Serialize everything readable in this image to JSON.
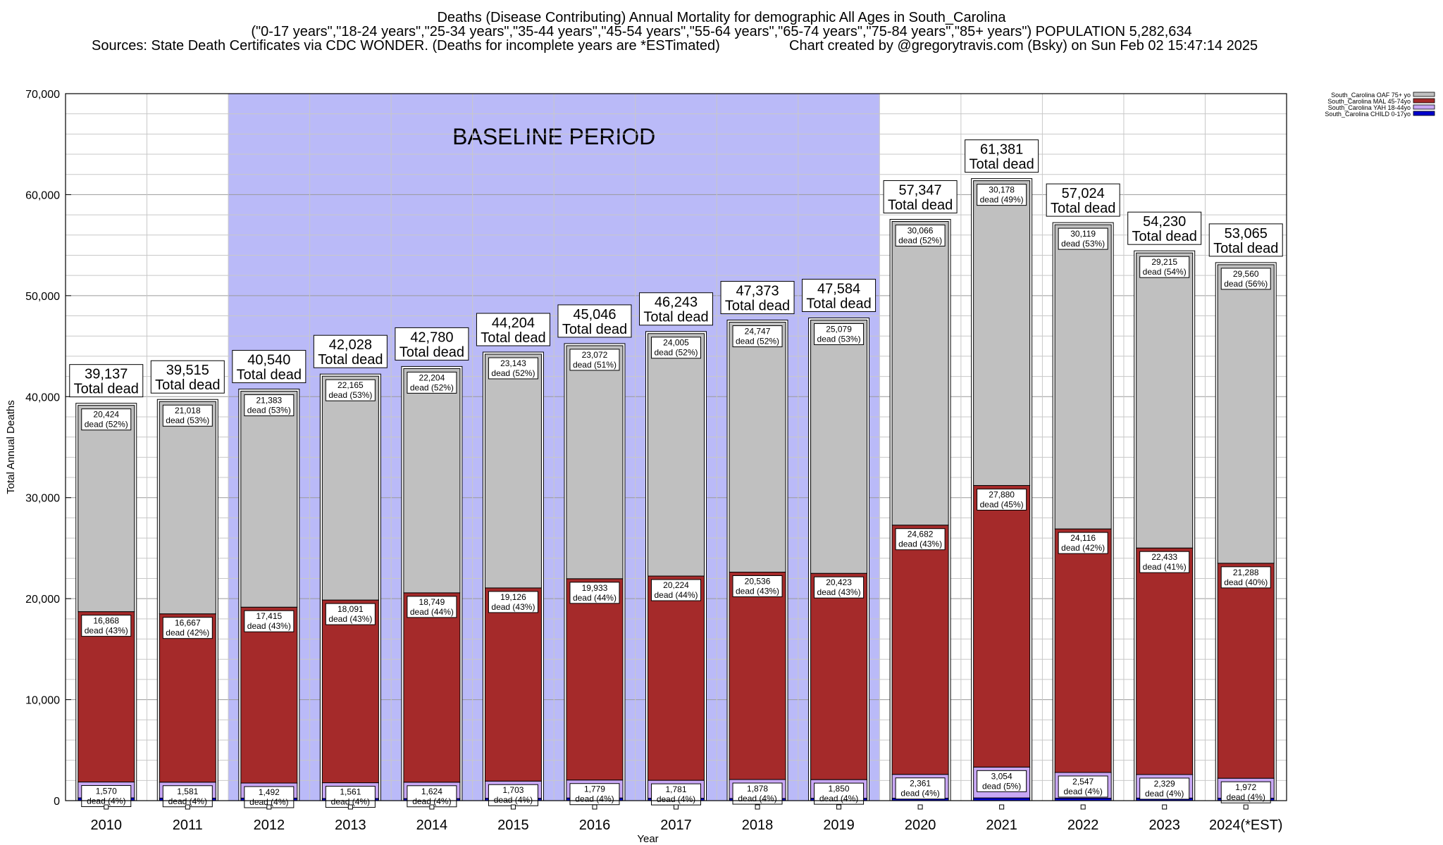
{
  "header": {
    "title": "Deaths (Disease Contributing) Annual Mortality for demographic All Ages in South_Carolina",
    "subtitle": "(\"0-17 years\",\"18-24 years\",\"25-34 years\",\"35-44 years\",\"45-54 years\",\"55-64 years\",\"65-74 years\",\"75-84 years\",\"85+ years\") POPULATION 5,282,634",
    "sources": "Sources: State Death Certificates via CDC WONDER. (Deaths for incomplete years are *ESTimated)",
    "credit": "Chart created by @gregorytravis.com (Bsky) on Sun Feb 02 15:47:14 2025"
  },
  "chart_data": {
    "type": "bar",
    "stacked": true,
    "xlabel": "Year",
    "ylabel": "Total Annual Deaths",
    "ylim": [
      0,
      70000
    ],
    "y_ticks": [
      "0",
      "10,000",
      "20,000",
      "30,000",
      "40,000",
      "50,000",
      "60,000",
      "70,000"
    ],
    "grid": true,
    "legend_position": "top-right",
    "annotation": {
      "text": "BASELINE PERIOD",
      "from_category": "2012",
      "to_category": "2019",
      "color": "#babaf8"
    },
    "categories": [
      "2010",
      "2011",
      "2012",
      "2013",
      "2014",
      "2015",
      "2016",
      "2017",
      "2018",
      "2019",
      "2020",
      "2021",
      "2022",
      "2023",
      "2024(*EST)"
    ],
    "series": [
      {
        "name": "South_Carolina CHILD 0-17yo",
        "color": "#0000cc",
        "values": [
          275,
          249,
          250,
          211,
          203,
          232,
          262,
          233,
          212,
          232,
          238,
          269,
          242,
          253,
          245
        ]
      },
      {
        "name": "South_Carolina YAH 18-44yo",
        "color": "#c9a8f5",
        "values": [
          1570,
          1581,
          1492,
          1561,
          1624,
          1703,
          1779,
          1781,
          1878,
          1850,
          2361,
          3054,
          2547,
          2329,
          1972
        ],
        "labels": [
          "1,570",
          "1,581",
          "1,492",
          "1,561",
          "1,624",
          "1,703",
          "1,779",
          "1,781",
          "1,878",
          "1,850",
          "2,361",
          "3,054",
          "2,547",
          "2,329",
          "1,972"
        ],
        "pcts": [
          "(4%)",
          "(4%)",
          "(4%)",
          "(4%)",
          "(4%)",
          "(4%)",
          "(4%)",
          "(4%)",
          "(4%)",
          "(4%)",
          "(4%)",
          "(5%)",
          "(4%)",
          "(4%)",
          "(4%)"
        ]
      },
      {
        "name": "South_Carolina MAL 45-74yo",
        "color": "#a52a2a",
        "values": [
          16868,
          16667,
          17415,
          18091,
          18749,
          19126,
          19933,
          20224,
          20536,
          20423,
          24682,
          27880,
          24116,
          22433,
          21288
        ],
        "labels": [
          "16,868",
          "16,667",
          "17,415",
          "18,091",
          "18,749",
          "19,126",
          "19,933",
          "20,224",
          "20,536",
          "20,423",
          "24,682",
          "27,880",
          "24,116",
          "22,433",
          "21,288"
        ],
        "pcts": [
          "(43%)",
          "(42%)",
          "(43%)",
          "(43%)",
          "(44%)",
          "(43%)",
          "(44%)",
          "(44%)",
          "(43%)",
          "(43%)",
          "(43%)",
          "(45%)",
          "(42%)",
          "(41%)",
          "(40%)"
        ]
      },
      {
        "name": "South_Carolina OAF 75+ yo",
        "color": "#c0c0c0",
        "values": [
          20424,
          21018,
          21383,
          22165,
          22204,
          23143,
          23072,
          24005,
          24747,
          25079,
          30066,
          30178,
          30119,
          29215,
          29560
        ],
        "labels": [
          "20,424",
          "21,018",
          "21,383",
          "22,165",
          "22,204",
          "23,143",
          "23,072",
          "24,005",
          "24,747",
          "25,079",
          "30,066",
          "30,178",
          "30,119",
          "29,215",
          "29,560"
        ],
        "pcts": [
          "(52%)",
          "(53%)",
          "(53%)",
          "(53%)",
          "(52%)",
          "(52%)",
          "(51%)",
          "(52%)",
          "(52%)",
          "(53%)",
          "(52%)",
          "(49%)",
          "(53%)",
          "(54%)",
          "(56%)"
        ]
      }
    ],
    "totals": [
      39137,
      39515,
      40540,
      42028,
      42780,
      44204,
      45046,
      46243,
      47373,
      47584,
      57347,
      61381,
      57024,
      54230,
      53065
    ],
    "total_labels": [
      "39,137",
      "39,515",
      "40,540",
      "42,028",
      "42,780",
      "44,204",
      "45,046",
      "46,243",
      "47,373",
      "47,584",
      "57,347",
      "61,381",
      "57,024",
      "54,230",
      "53,065"
    ],
    "total_suffix": "Total dead",
    "segment_prefix": "dead"
  }
}
